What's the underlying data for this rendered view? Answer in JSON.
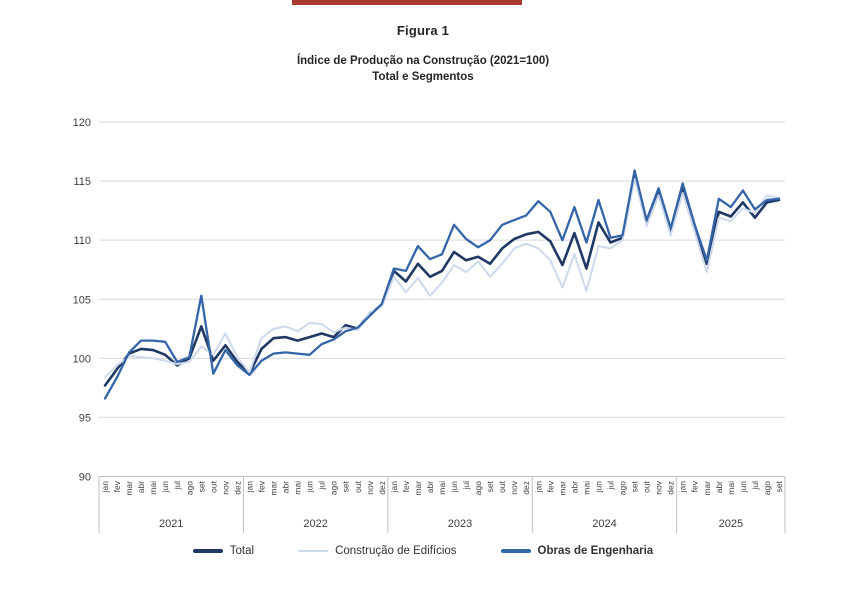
{
  "page": {
    "figure_label": "Figura 1",
    "title_line1": "Índice de Produção na Construção (2021=100)",
    "title_line2": "Total e Segmentos"
  },
  "colors": {
    "accent_bar": "#A93A31",
    "title_text": "#262626",
    "axis_text": "#404040",
    "gridline": "#D9D9D9",
    "axis_line": "#BFBFBF",
    "series_total": "#1F3864",
    "series_edificios": "#CDD9EC",
    "series_engenharia": "#3465A8"
  },
  "chart_data": {
    "type": "line",
    "title": "Índice de Produção na Construção (2021=100) — Total e Segmentos",
    "xlabel": "",
    "ylabel": "",
    "ylim": [
      90,
      120
    ],
    "y_ticks": [
      90,
      95,
      100,
      105,
      110,
      115,
      120
    ],
    "grid": true,
    "legend_position": "bottom",
    "months_of_year": [
      "jan",
      "fev",
      "mar",
      "abr",
      "mai",
      "jun",
      "jul",
      "ago",
      "set",
      "out",
      "nov",
      "dez"
    ],
    "year_groups": [
      {
        "label": "2021",
        "months": 12
      },
      {
        "label": "2022",
        "months": 12
      },
      {
        "label": "2023",
        "months": 12
      },
      {
        "label": "2024",
        "months": 12
      },
      {
        "label": "2025",
        "months": 9
      }
    ],
    "series": [
      {
        "name": "Total",
        "color": "#1F3864",
        "width": 2.6,
        "bold_label": false,
        "values": [
          97.7,
          99.1,
          100.4,
          100.8,
          100.7,
          100.3,
          99.4,
          100.0,
          102.7,
          99.8,
          101.1,
          99.7,
          98.7,
          100.8,
          101.7,
          101.8,
          101.5,
          101.8,
          102.1,
          101.8,
          102.8,
          102.5,
          103.8,
          104.5,
          107.4,
          106.5,
          108.0,
          106.9,
          107.4,
          109.0,
          108.3,
          108.6,
          108.0,
          109.3,
          110.1,
          110.5,
          110.7,
          109.9,
          107.9,
          110.6,
          107.6,
          111.5,
          109.8,
          110.2,
          115.6,
          111.4,
          114.1,
          110.7,
          114.4,
          111.0,
          108.0,
          112.4,
          112.0,
          113.2,
          111.9,
          113.2,
          113.4
        ]
      },
      {
        "name": "Construção de Edifícios",
        "color": "#CDD9EC",
        "width": 2.0,
        "bold_label": false,
        "values": [
          98.4,
          99.4,
          100.2,
          100.1,
          100.0,
          99.8,
          99.5,
          99.7,
          101.0,
          100.3,
          102.1,
          100.1,
          98.8,
          101.7,
          102.5,
          102.7,
          102.3,
          103.0,
          102.9,
          102.2,
          102.6,
          102.4,
          103.9,
          104.4,
          106.9,
          105.6,
          106.8,
          105.3,
          106.4,
          107.9,
          107.3,
          108.2,
          106.9,
          108.0,
          109.3,
          109.7,
          109.3,
          108.3,
          106.0,
          108.8,
          105.7,
          109.5,
          109.3,
          110.0,
          115.2,
          111.2,
          113.8,
          110.4,
          114.0,
          110.7,
          107.3,
          111.9,
          111.6,
          112.7,
          112.3,
          113.8,
          113.6
        ]
      },
      {
        "name": "Obras de Engenharia",
        "color": "#3465A8",
        "width": 2.3,
        "bold_label": true,
        "values": [
          96.6,
          98.4,
          100.5,
          101.5,
          101.5,
          101.4,
          99.7,
          100.1,
          105.3,
          98.7,
          100.7,
          99.4,
          98.6,
          99.8,
          100.4,
          100.5,
          100.4,
          100.3,
          101.2,
          101.6,
          102.3,
          102.6,
          103.6,
          104.6,
          107.6,
          107.4,
          109.5,
          108.4,
          108.8,
          111.3,
          110.1,
          109.4,
          110.0,
          111.3,
          111.7,
          112.1,
          113.3,
          112.4,
          110.0,
          112.8,
          109.8,
          113.4,
          110.2,
          110.4,
          115.9,
          111.7,
          114.4,
          111.0,
          114.8,
          111.3,
          108.3,
          113.5,
          112.8,
          114.2,
          112.6,
          113.4,
          113.5
        ]
      }
    ]
  }
}
